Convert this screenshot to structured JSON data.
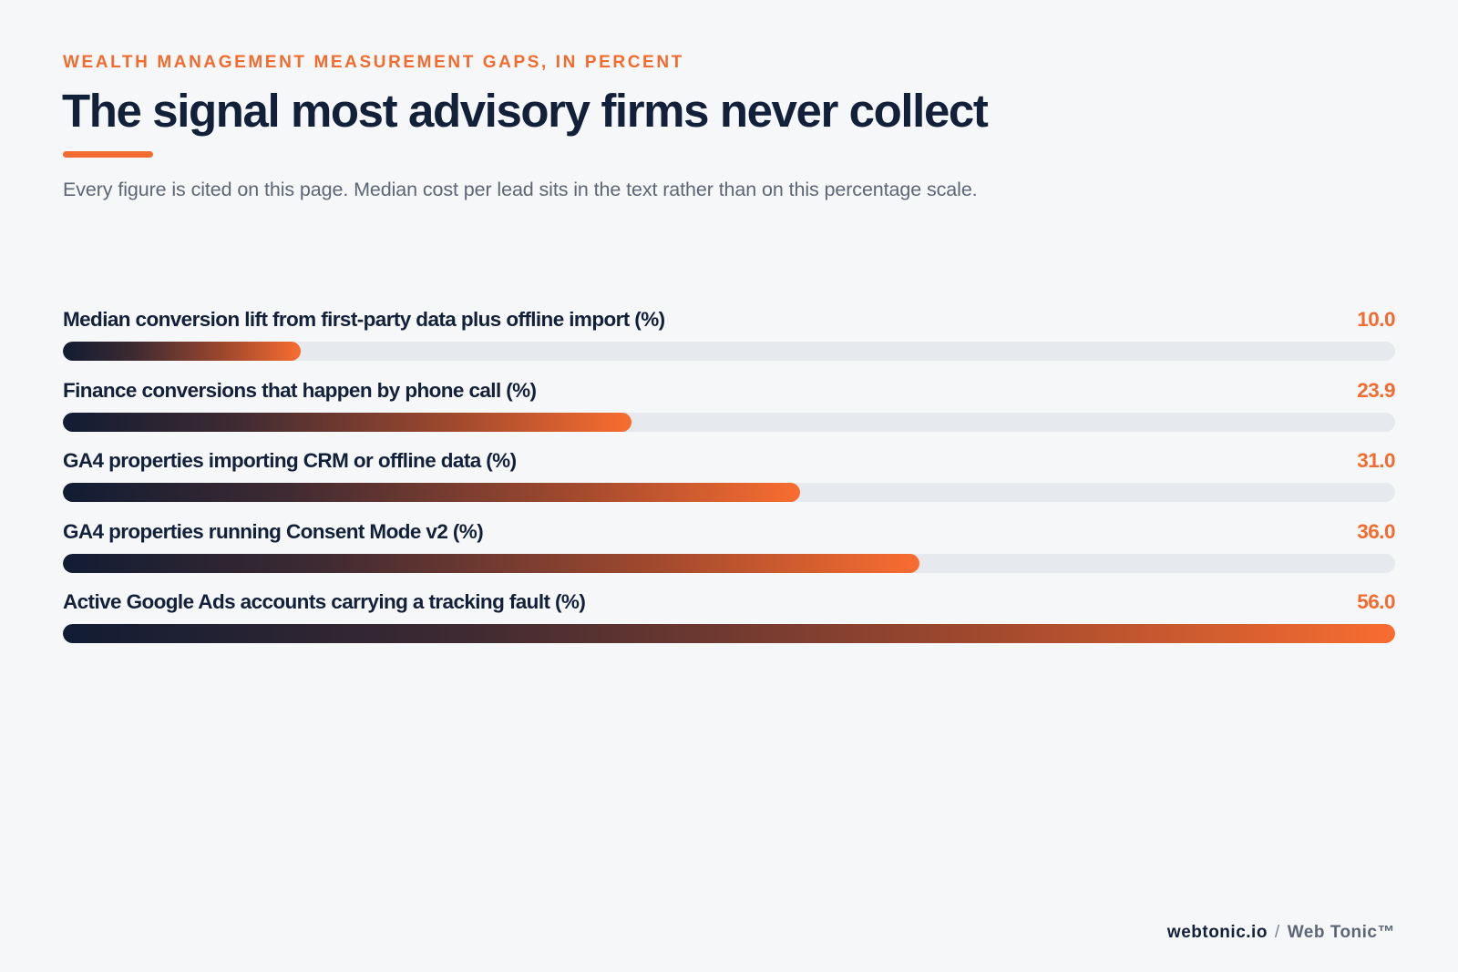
{
  "header": {
    "eyebrow": "WEALTH MANAGEMENT MEASUREMENT GAPS, IN PERCENT",
    "title": "The signal most advisory firms never collect",
    "subtitle": "Every figure is cited on this page. Median cost per lead sits in the text rather than on this percentage scale."
  },
  "footer": {
    "site": "webtonic.io",
    "separator": "/",
    "brand": "Web Tonic™"
  },
  "colors": {
    "accent": "#f26b2f",
    "ink": "#13203a",
    "track": "#e6e9ed",
    "background": "#f6f7f9"
  },
  "chart_data": {
    "type": "bar",
    "orientation": "horizontal",
    "categories": [
      "Median conversion lift from first-party data plus offline import (%)",
      "Finance conversions that happen by phone call (%)",
      "GA4 properties importing CRM or offline data (%)",
      "GA4 properties running Consent Mode v2 (%)",
      "Active Google Ads accounts carrying a tracking fault (%)"
    ],
    "values": [
      10.0,
      23.9,
      31.0,
      36.0,
      56.0
    ],
    "value_labels": [
      "10.0",
      "23.9",
      "31.0",
      "36.0",
      "56.0"
    ],
    "xlim": [
      0,
      56
    ],
    "grid": false,
    "legend": "none"
  }
}
